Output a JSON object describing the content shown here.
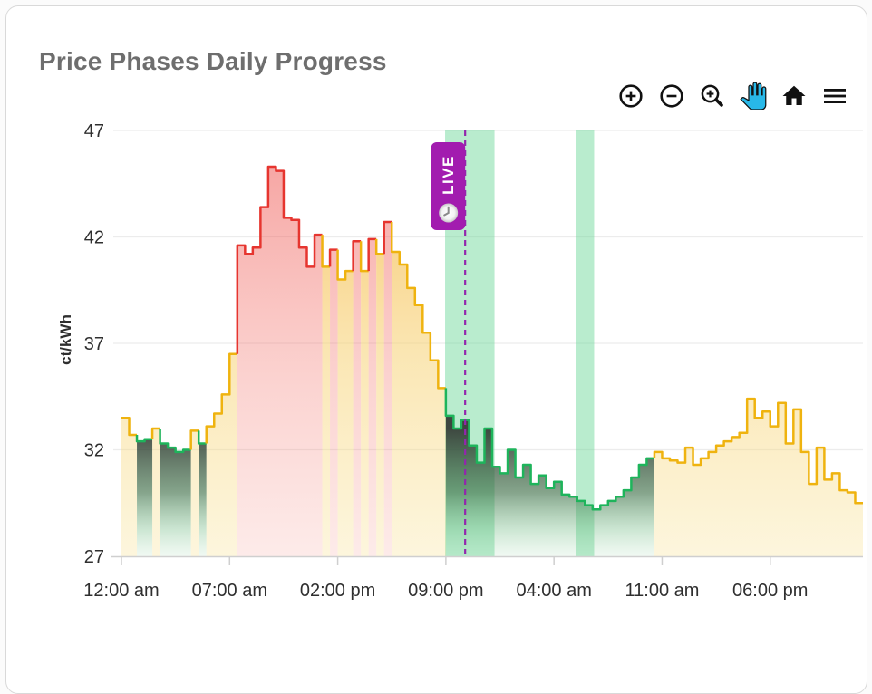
{
  "card": {
    "title": "Price Phases Daily Progress"
  },
  "toolbar": {
    "icons": [
      "zoom-in-icon",
      "zoom-out-icon",
      "box-zoom-icon",
      "pan-icon",
      "home-icon",
      "menu-icon"
    ],
    "active_tool": "pan",
    "pan_active_color": "#28b8e8",
    "icon_color": "#111111"
  },
  "chart_data": {
    "type": "area",
    "title": "Price Phases Daily Progress",
    "xlabel": "",
    "ylabel": "ct/kWh",
    "ylim": [
      27,
      47
    ],
    "y_ticks": [
      47,
      42,
      37,
      32,
      27
    ],
    "xlim_hours": [
      0,
      48
    ],
    "x_ticks": [
      {
        "hour": 0,
        "label": "12:00 am"
      },
      {
        "hour": 7,
        "label": "07:00 am"
      },
      {
        "hour": 14,
        "label": "02:00 pm"
      },
      {
        "hour": 21,
        "label": "09:00 pm"
      },
      {
        "hour": 28,
        "label": "04:00 am"
      },
      {
        "hour": 35,
        "label": "11:00 am"
      },
      {
        "hour": 42,
        "label": "06:00 pm"
      }
    ],
    "step_hours": 0.5,
    "series": [
      {
        "name": "price_ct_per_kwh",
        "values": [
          33.5,
          32.7,
          32.4,
          32.5,
          33.0,
          32.3,
          32.1,
          31.9,
          32.0,
          32.9,
          32.3,
          33.1,
          33.7,
          34.6,
          36.5,
          41.6,
          41.2,
          41.5,
          43.4,
          45.3,
          45.1,
          42.9,
          42.8,
          41.5,
          40.6,
          42.1,
          40.6,
          41.4,
          40.0,
          40.4,
          41.8,
          40.4,
          41.9,
          41.2,
          42.7,
          41.3,
          40.7,
          39.6,
          38.8,
          37.5,
          36.2,
          34.9,
          33.6,
          33.0,
          33.4,
          32.2,
          31.4,
          33.0,
          31.2,
          30.9,
          32.0,
          30.7,
          31.3,
          30.4,
          30.8,
          30.2,
          30.5,
          29.9,
          29.8,
          29.6,
          29.4,
          29.2,
          29.4,
          29.6,
          29.8,
          30.1,
          30.7,
          31.3,
          31.6,
          31.9,
          31.6,
          31.5,
          31.4,
          32.1,
          31.3,
          31.6,
          31.9,
          32.2,
          32.4,
          32.6,
          32.8,
          34.4,
          33.5,
          33.8,
          33.1,
          34.2,
          32.3,
          33.9,
          31.9,
          30.4,
          32.1,
          30.6,
          30.9,
          30.1,
          30.0,
          29.5
        ]
      }
    ],
    "phase_ranges_hours": {
      "cheap": [
        [
          1.0,
          2.0
        ],
        [
          2.5,
          4.5
        ],
        [
          5.0,
          5.5
        ],
        [
          21.0,
          34.5
        ]
      ],
      "expensive": [
        [
          7.5,
          13.0
        ],
        [
          13.5,
          14.0
        ],
        [
          15.0,
          15.5
        ],
        [
          16.0,
          16.5
        ],
        [
          17.0,
          17.5
        ]
      ]
    },
    "highlight_bands_hours": [
      [
        20.95,
        24.15
      ],
      [
        29.4,
        30.6
      ]
    ],
    "live_marker": {
      "hour": 22.25,
      "label": "LIVE"
    },
    "legend": "none",
    "grid": "horizontal",
    "colors": {
      "normal_line": "#efb30f",
      "expensive_line": "#e6352f",
      "cheap_line": "#1eb45b",
      "band": "#66d694",
      "live": "#a21caf",
      "live_dash": "#9326ad",
      "grid": "#ececec",
      "axis_line": "#cfcfcf",
      "axis_text": "#2f2f2f",
      "title_text": "#6e6e6e"
    }
  }
}
